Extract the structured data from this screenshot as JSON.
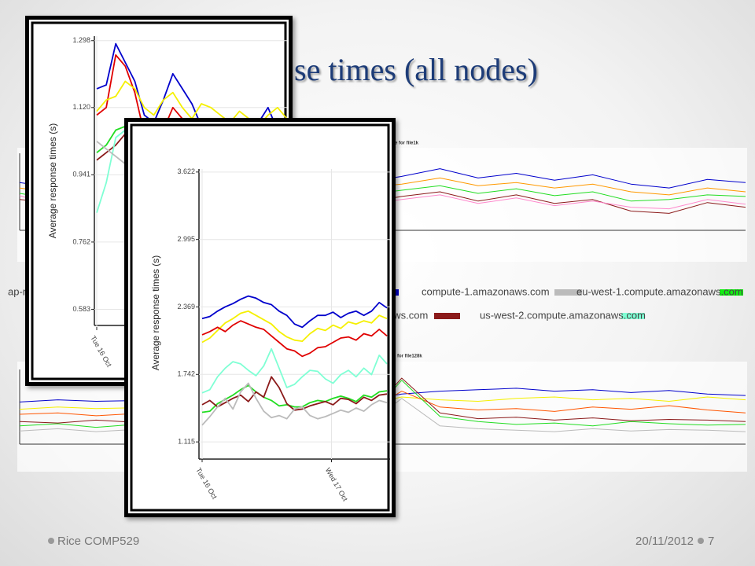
{
  "slide": {
    "title": "se times (all nodes)",
    "side_label": "ap-no",
    "footer_left": "Rice COMP529",
    "date": "20/11/2012",
    "page": "7",
    "legend": [
      {
        "color": "#0000cc"
      },
      {
        "label": "compute-1.amazonaws.com",
        "color": "#bbbbbb"
      },
      {
        "label": "eu-west-1.compute.amazonaws.com",
        "color": "#11ee11"
      },
      {
        "label": "aws.com",
        "color": "#8b1a1a"
      },
      {
        "label": "us-west-2.compute.amazonaws.com",
        "color": "#7fffd4"
      }
    ]
  },
  "chart_data": [
    {
      "type": "line",
      "title": "nce for file1k",
      "ylim": [
        0,
        100
      ],
      "xlim": [
        0,
        19
      ],
      "series": [
        {
          "color": "#0000cc",
          "values": [
            62,
            55,
            70,
            60,
            68,
            58,
            72,
            66,
            75,
            62,
            70,
            80,
            68,
            74,
            65,
            72,
            60,
            55,
            66,
            62
          ]
        },
        {
          "color": "#ff9900",
          "values": [
            55,
            48,
            60,
            52,
            58,
            50,
            62,
            56,
            64,
            55,
            60,
            68,
            58,
            62,
            55,
            60,
            50,
            46,
            55,
            50
          ]
        },
        {
          "color": "#22dd22",
          "values": [
            48,
            40,
            52,
            44,
            50,
            42,
            54,
            48,
            55,
            46,
            52,
            58,
            48,
            54,
            45,
            50,
            38,
            40,
            46,
            44
          ]
        },
        {
          "color": "#8b1a1a",
          "values": [
            40,
            35,
            42,
            30,
            45,
            32,
            38,
            42,
            48,
            36,
            44,
            50,
            38,
            46,
            35,
            40,
            25,
            22,
            36,
            30
          ]
        },
        {
          "color": "#ff88cc",
          "values": [
            45,
            30,
            38,
            28,
            42,
            30,
            36,
            40,
            44,
            34,
            40,
            46,
            35,
            42,
            32,
            38,
            30,
            28,
            40,
            34
          ]
        }
      ]
    },
    {
      "type": "line",
      "title": "nce for file128k",
      "ylim": [
        0,
        100
      ],
      "xlim": [
        0,
        19
      ],
      "series": [
        {
          "color": "#0000cc",
          "values": [
            55,
            58,
            56,
            57,
            59,
            56,
            58,
            57,
            60,
            58,
            66,
            70,
            72,
            74,
            70,
            72,
            68,
            71,
            66,
            64
          ]
        },
        {
          "color": "#f5f000",
          "values": [
            45,
            48,
            46,
            47,
            44,
            46,
            48,
            45,
            47,
            50,
            62,
            58,
            56,
            60,
            62,
            58,
            60,
            56,
            62,
            58
          ]
        },
        {
          "color": "#ff5500",
          "values": [
            38,
            40,
            36,
            39,
            37,
            41,
            38,
            36,
            40,
            38,
            70,
            48,
            44,
            46,
            42,
            48,
            45,
            50,
            44,
            40
          ]
        },
        {
          "color": "#22dd22",
          "values": [
            22,
            25,
            20,
            24,
            21,
            23,
            25,
            22,
            24,
            26,
            85,
            35,
            28,
            24,
            26,
            22,
            28,
            25,
            23,
            24
          ]
        },
        {
          "color": "#bbbbbb",
          "values": [
            15,
            18,
            14,
            17,
            16,
            15,
            18,
            16,
            17,
            19,
            60,
            22,
            18,
            16,
            14,
            18,
            15,
            17,
            16,
            14
          ]
        },
        {
          "color": "#8b1a1a",
          "values": [
            28,
            26,
            30,
            27,
            29,
            26,
            28,
            30,
            27,
            29,
            88,
            40,
            32,
            34,
            30,
            33,
            29,
            31,
            30,
            28
          ]
        }
      ]
    },
    {
      "type": "line",
      "y_label": "Average response times (s)",
      "ylim": [
        0.54,
        1.31
      ],
      "xlim": [
        0,
        20
      ],
      "grid": true,
      "yticks": [
        1.298,
        {
          "value": 1.12,
          "label": "1.120"
        },
        0.941,
        0.762,
        0.583
      ],
      "xticks": [
        {
          "value": 0,
          "label": "Tue 16 Oct"
        }
      ],
      "series": [
        {
          "color": "#0000cc",
          "values": [
            1.17,
            1.18,
            1.29,
            1.24,
            1.19,
            1.1,
            1.08,
            1.14,
            1.21,
            1.17,
            1.13,
            1.07,
            1.06,
            1.04,
            1.09,
            1.07,
            1.05,
            1.08,
            1.12,
            1.06,
            1.08
          ]
        },
        {
          "color": "#e00000",
          "values": [
            1.1,
            1.12,
            1.26,
            1.23,
            1.16,
            1.05,
            1.02,
            1.06,
            1.12,
            1.09,
            1.04,
            1.0,
            0.99,
            0.98,
            1.01,
            0.99,
            0.97,
            1.0,
            1.03,
            0.98,
            1.0
          ]
        },
        {
          "color": "#f5f000",
          "values": [
            1.11,
            1.14,
            1.15,
            1.19,
            1.17,
            1.12,
            1.1,
            1.14,
            1.16,
            1.12,
            1.09,
            1.13,
            1.12,
            1.1,
            1.08,
            1.11,
            1.09,
            1.07,
            1.1,
            1.12,
            1.09
          ]
        },
        {
          "color": "#22dd22",
          "values": [
            1.0,
            1.02,
            1.06,
            1.07,
            1.02,
            0.97,
            0.95,
            0.98,
            1.0,
            0.98,
            0.96,
            0.95,
            0.94,
            0.93,
            0.95,
            0.94,
            0.92,
            0.94,
            0.96,
            0.93,
            0.94
          ]
        },
        {
          "color": "#8b1a1a",
          "values": [
            0.98,
            1.0,
            1.02,
            1.05,
            0.99,
            0.94,
            0.91,
            0.93,
            0.96,
            0.94,
            0.92,
            0.9,
            0.89,
            0.88,
            0.9,
            0.89,
            0.87,
            0.89,
            0.91,
            0.88,
            0.89
          ]
        },
        {
          "color": "#7fffd4",
          "values": [
            0.84,
            0.92,
            1.04,
            1.06,
            1.0,
            0.95,
            0.98,
            1.0,
            1.02,
            0.99,
            0.97,
            0.96,
            0.95,
            0.97,
            0.95,
            0.94,
            0.96,
            0.98,
            0.95,
            0.97,
            0.96
          ]
        },
        {
          "color": "#bbbbbb",
          "values": [
            1.03,
            1.01,
            0.99,
            0.97,
            0.96,
            0.98,
            0.96,
            0.95,
            0.94,
            0.96,
            0.95,
            0.93,
            0.92,
            0.94,
            0.93,
            0.92,
            0.94,
            0.95,
            0.93,
            0.92,
            0.93
          ]
        }
      ]
    },
    {
      "type": "line",
      "y_label": "Average response times (s)",
      "ylim": [
        0.97,
        3.65
      ],
      "xlim": [
        0,
        24
      ],
      "grid": true,
      "yticks": [
        3.622,
        2.995,
        2.369,
        1.742,
        1.115
      ],
      "xticks": [
        {
          "value": 0,
          "label": "Tue 16 Oct"
        },
        {
          "value": 16.8,
          "label": "Wed 17 Oct"
        }
      ],
      "series": [
        {
          "color": "#0000cc",
          "values": [
            2.26,
            2.28,
            2.33,
            2.37,
            2.4,
            2.44,
            2.47,
            2.45,
            2.41,
            2.39,
            2.33,
            2.29,
            2.21,
            2.18,
            2.24,
            2.29,
            2.29,
            2.32,
            2.27,
            2.31,
            2.33,
            2.29,
            2.33,
            2.41,
            2.36
          ]
        },
        {
          "color": "#f5f000",
          "values": [
            2.04,
            2.08,
            2.15,
            2.22,
            2.26,
            2.31,
            2.33,
            2.29,
            2.25,
            2.21,
            2.14,
            2.09,
            2.06,
            2.05,
            2.12,
            2.17,
            2.15,
            2.2,
            2.17,
            2.23,
            2.21,
            2.24,
            2.22,
            2.29,
            2.26
          ]
        },
        {
          "color": "#e00000",
          "values": [
            2.11,
            2.14,
            2.18,
            2.14,
            2.2,
            2.24,
            2.21,
            2.18,
            2.16,
            2.1,
            2.04,
            1.98,
            1.96,
            1.91,
            1.94,
            1.99,
            2.0,
            2.04,
            2.08,
            2.09,
            2.06,
            2.12,
            2.1,
            2.16,
            2.1
          ]
        },
        {
          "color": "#7fffd4",
          "values": [
            1.57,
            1.6,
            1.72,
            1.8,
            1.86,
            1.84,
            1.78,
            1.73,
            1.82,
            1.98,
            1.8,
            1.62,
            1.65,
            1.72,
            1.78,
            1.77,
            1.7,
            1.66,
            1.74,
            1.78,
            1.72,
            1.8,
            1.74,
            1.92,
            1.84
          ]
        },
        {
          "color": "#22dd22",
          "values": [
            1.39,
            1.4,
            1.47,
            1.51,
            1.55,
            1.6,
            1.64,
            1.58,
            1.53,
            1.5,
            1.45,
            1.46,
            1.44,
            1.44,
            1.48,
            1.5,
            1.49,
            1.52,
            1.54,
            1.52,
            1.49,
            1.55,
            1.53,
            1.58,
            1.59
          ]
        },
        {
          "color": "#8b1a1a",
          "values": [
            1.46,
            1.5,
            1.44,
            1.48,
            1.52,
            1.55,
            1.49,
            1.58,
            1.53,
            1.72,
            1.62,
            1.47,
            1.41,
            1.42,
            1.45,
            1.47,
            1.49,
            1.46,
            1.52,
            1.51,
            1.47,
            1.53,
            1.5,
            1.55,
            1.56
          ]
        },
        {
          "color": "#bbbbbb",
          "values": [
            1.27,
            1.35,
            1.44,
            1.52,
            1.42,
            1.58,
            1.66,
            1.52,
            1.4,
            1.34,
            1.36,
            1.33,
            1.42,
            1.44,
            1.36,
            1.33,
            1.35,
            1.38,
            1.41,
            1.39,
            1.43,
            1.4,
            1.46,
            1.5,
            1.48
          ]
        }
      ]
    }
  ]
}
